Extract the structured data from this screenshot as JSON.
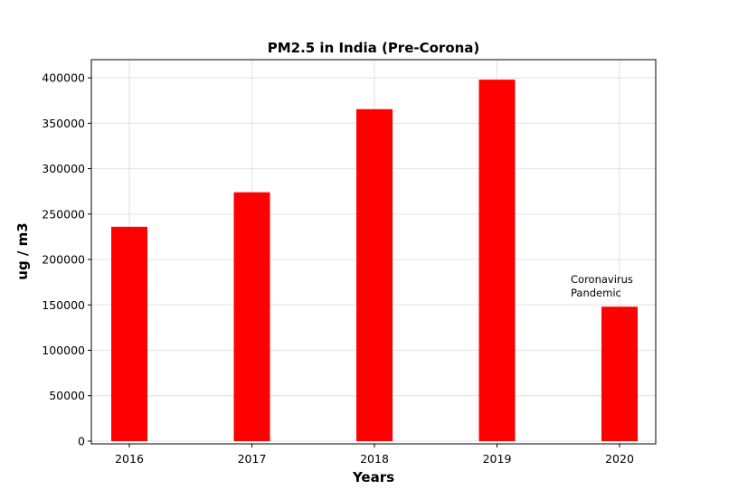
{
  "chart_data": {
    "type": "bar",
    "title": "PM2.5 in India (Pre-Corona)",
    "xlabel": "Years",
    "ylabel": "ug / m3",
    "categories": [
      "2016",
      "2017",
      "2018",
      "2019",
      "2020"
    ],
    "values": [
      236000,
      274000,
      365500,
      398000,
      148000
    ],
    "ylim": [
      -3000,
      420000
    ],
    "yticks": [
      0,
      50000,
      100000,
      150000,
      200000,
      250000,
      300000,
      350000,
      400000
    ],
    "ytick_labels": [
      "0",
      "50000",
      "100000",
      "150000",
      "200000",
      "250000",
      "300000",
      "350000",
      "400000"
    ],
    "bar_color": "#ff0000",
    "grid": true,
    "grid_color": "#e6e6e6",
    "annotation": {
      "lines": [
        "Coronavirus",
        "Pandemic"
      ],
      "category": "2020",
      "y": 170000
    }
  }
}
